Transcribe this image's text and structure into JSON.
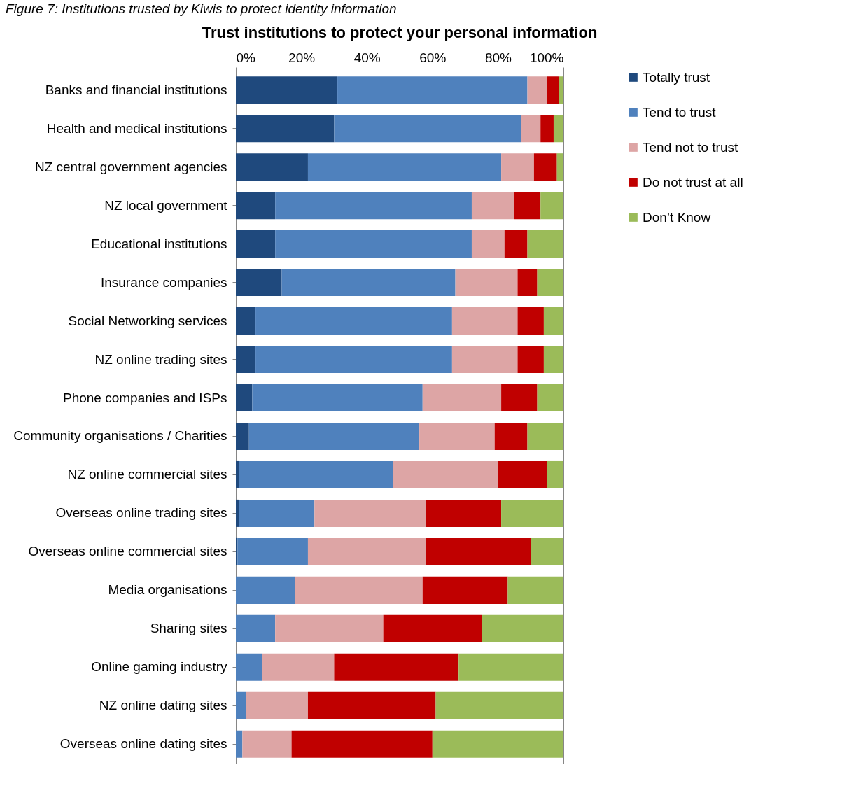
{
  "chart_data": {
    "type": "bar",
    "orientation": "horizontal",
    "stacked": true,
    "title": "Trust institutions to protect your personal information",
    "annotations": [
      "Figure 7: Institutions trusted by Kiwis to protect identity information"
    ],
    "categories": [
      "Banks and financial institutions",
      "Health and medical institutions",
      "NZ central government agencies",
      "NZ local government",
      "Educational institutions",
      "Insurance companies",
      "Social Networking services",
      "NZ online trading sites",
      "Phone companies and ISPs",
      "Community organisations / Charities",
      "NZ online commercial sites",
      "Overseas online trading sites",
      "Overseas online commercial sites",
      "Media organisations",
      "Sharing sites",
      "Online gaming industry",
      "NZ online dating sites",
      "Overseas online dating sites"
    ],
    "series": [
      {
        "name": "Totally trust",
        "color": "#1f497d",
        "values": [
          31,
          30,
          22,
          12,
          12,
          14,
          6,
          6,
          5,
          4,
          1,
          1,
          0.5,
          0,
          0,
          0,
          0,
          0
        ]
      },
      {
        "name": "Tend to trust",
        "color": "#4f81bd",
        "values": [
          58,
          57,
          59,
          60,
          60,
          53,
          60,
          60,
          52,
          52,
          47,
          23,
          21.5,
          18,
          12,
          8,
          3,
          2
        ]
      },
      {
        "name": "Tend not to trust",
        "color": "#dda5a5",
        "values": [
          6,
          6,
          10,
          13,
          10,
          19,
          20,
          20,
          24,
          23,
          32,
          34,
          36,
          39,
          33,
          22,
          19,
          15
        ]
      },
      {
        "name": "Do not trust at all",
        "color": "#c00000",
        "values": [
          3.5,
          4,
          7,
          8,
          7,
          6,
          8,
          8,
          11,
          10,
          15,
          23,
          32,
          26,
          30,
          38,
          39,
          43
        ]
      },
      {
        "name": "Don’t Know",
        "color": "#9bbb59",
        "values": [
          1.5,
          3,
          2,
          7,
          11,
          8,
          6,
          6,
          8,
          11,
          5,
          19,
          10,
          17,
          25,
          32,
          39,
          40
        ]
      }
    ],
    "xlim": [
      0,
      100
    ],
    "xticks": [
      {
        "value": 0,
        "label": "0%"
      },
      {
        "value": 20,
        "label": "20%"
      },
      {
        "value": 40,
        "label": "40%"
      },
      {
        "value": 60,
        "label": "60%"
      },
      {
        "value": 80,
        "label": "80%"
      },
      {
        "value": 100,
        "label": "100%"
      }
    ],
    "grid": "x",
    "legend": "right"
  }
}
